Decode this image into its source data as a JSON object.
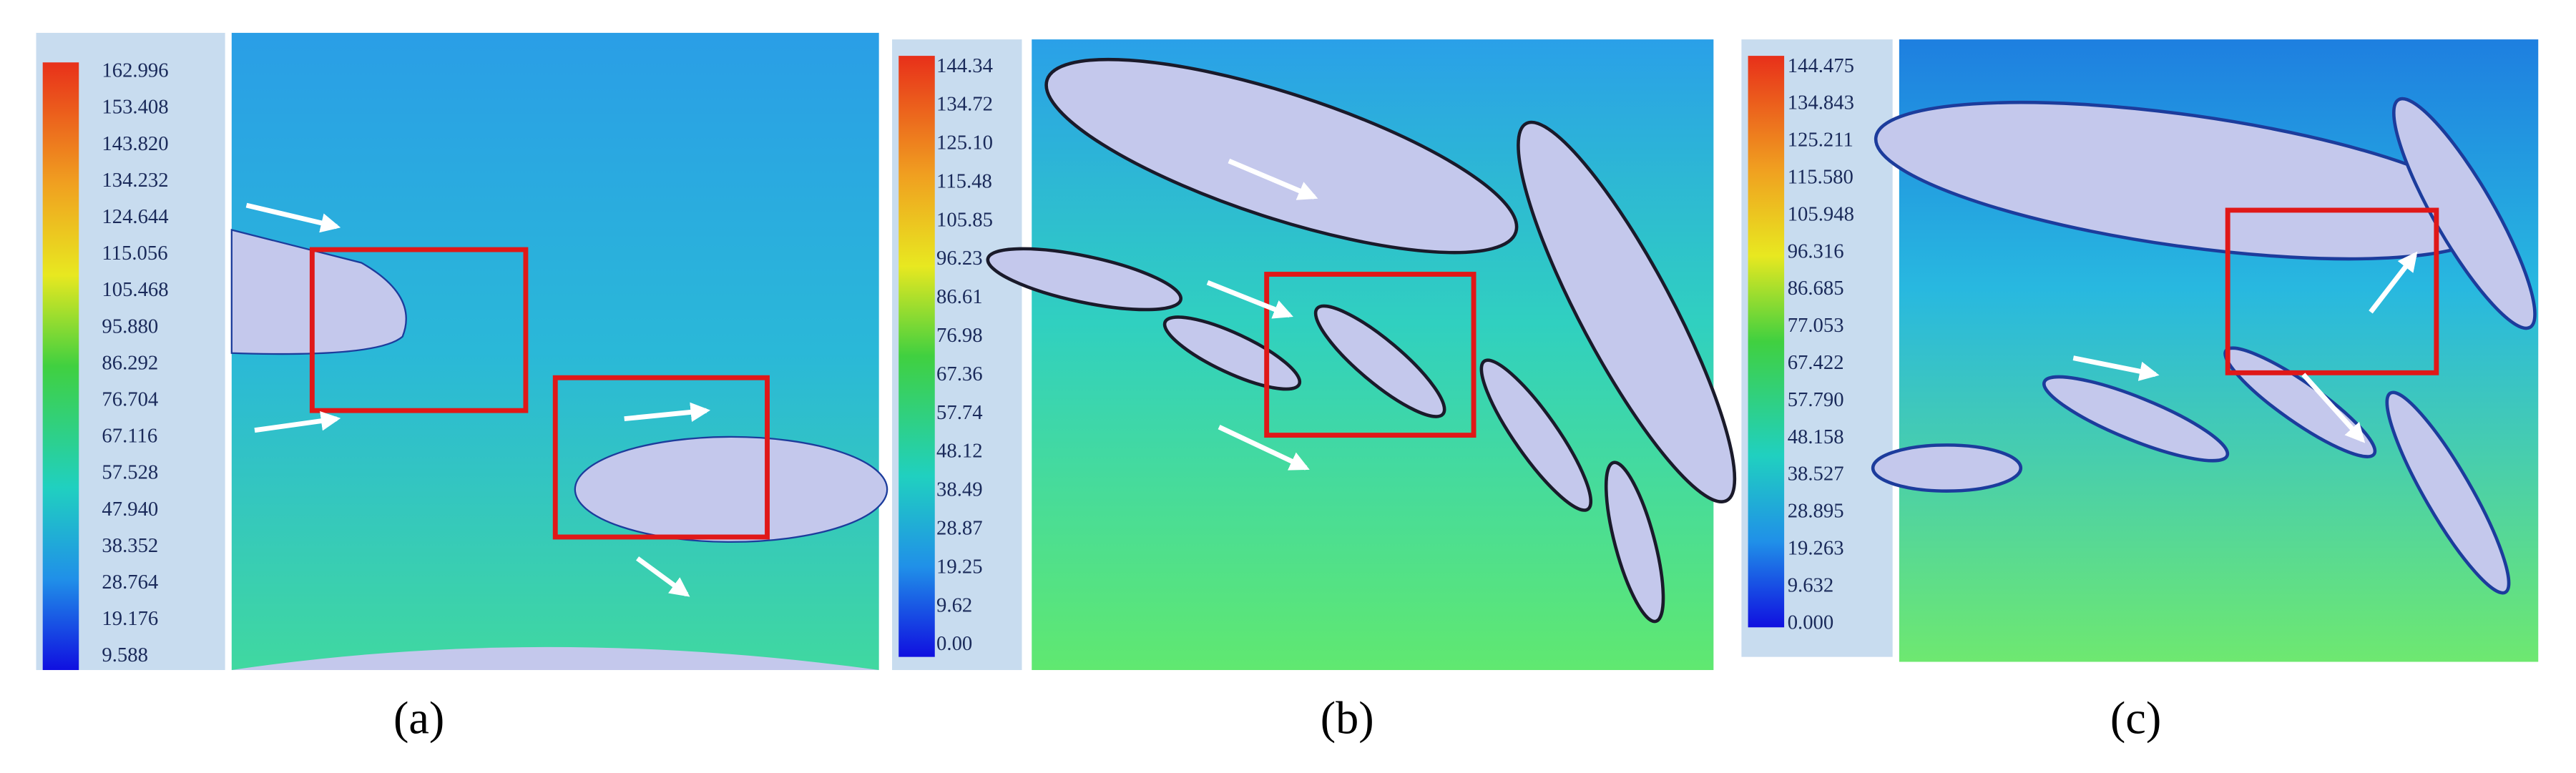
{
  "panels": [
    {
      "label": "(a)",
      "legend": [
        "162.996",
        "153.408",
        "143.820",
        "134.232",
        "124.644",
        "115.056",
        "105.468",
        "95.880",
        "86.292",
        "76.704",
        "67.116",
        "57.528",
        "47.940",
        "38.352",
        "28.764",
        "19.176",
        "9.588"
      ]
    },
    {
      "label": "(b)",
      "legend": [
        "144.34",
        "134.72",
        "125.10",
        "115.48",
        "105.85",
        "96.23",
        "86.61",
        "76.98",
        "67.36",
        "57.74",
        "48.12",
        "38.49",
        "28.87",
        "19.25",
        "9.62",
        "0.00"
      ]
    },
    {
      "label": "(c)",
      "legend": [
        "144.475",
        "134.843",
        "125.211",
        "115.580",
        "105.948",
        "96.316",
        "86.685",
        "77.053",
        "67.422",
        "57.790",
        "48.158",
        "38.527",
        "28.895",
        "19.263",
        "9.632",
        "0.000"
      ]
    }
  ]
}
